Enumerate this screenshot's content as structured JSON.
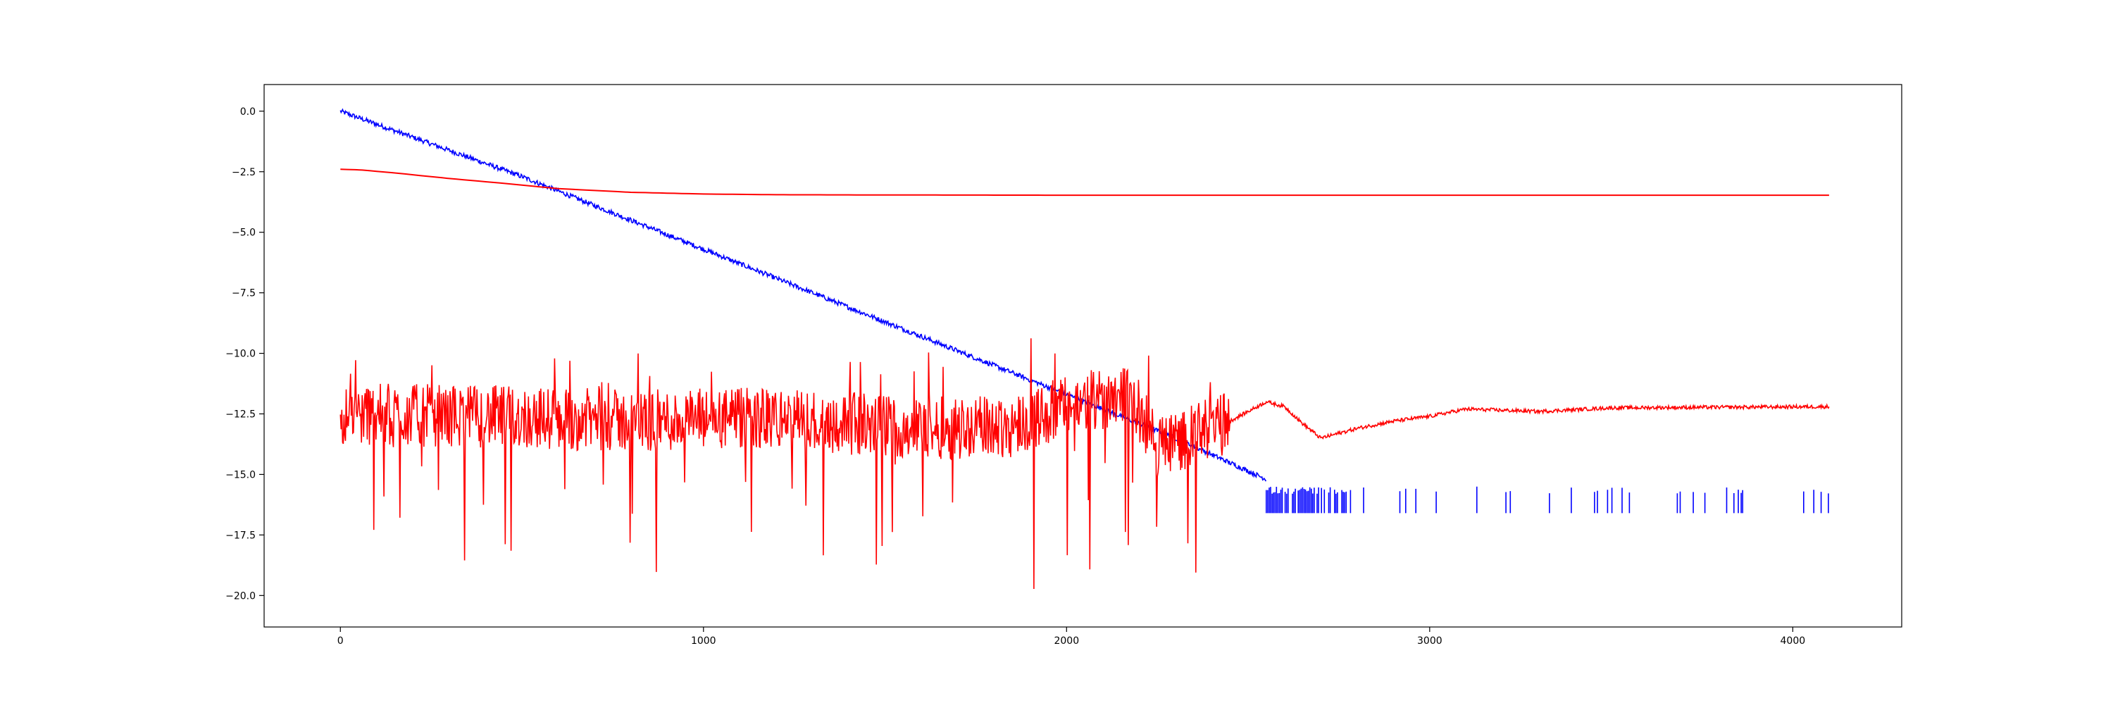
{
  "chart_data": {
    "type": "line",
    "title": "",
    "xlabel": "",
    "ylabel": "",
    "xlim": [
      -210,
      4300
    ],
    "ylim": [
      -21.3,
      1.1
    ],
    "grid": false,
    "x_ticks": [
      0,
      1000,
      2000,
      3000,
      4000
    ],
    "x_tick_labels": [
      "0",
      "1000",
      "2000",
      "3000",
      "4000"
    ],
    "y_ticks": [
      0.0,
      -2.5,
      -5.0,
      -7.5,
      -10.0,
      -12.5,
      -15.0,
      -17.5,
      -20.0
    ],
    "y_tick_labels": [
      "0.0",
      "−2.5",
      "−5.0",
      "−7.5",
      "−10.0",
      "−12.5",
      "−15.0",
      "−17.5",
      "−20.0"
    ],
    "colors": {
      "blue": "#0000ff",
      "red": "#ff0000"
    },
    "series": [
      {
        "color": "#0000ff",
        "style": "noisy decay to floor",
        "x": [
          0,
          500,
          1000,
          1500,
          2000,
          2300,
          2550
        ],
        "values": [
          0.0,
          -2.7,
          -5.7,
          -8.7,
          -11.7,
          -13.5,
          -15.2
        ],
        "noise_amp": 0.1,
        "floor_after_x": 2550,
        "floor_band": [
          -16.6,
          -15.5
        ]
      },
      {
        "color": "#ff0000",
        "style": "smooth",
        "x": [
          0,
          50,
          150,
          300,
          450,
          600,
          800,
          1000,
          1200,
          1500,
          2000,
          3000,
          4100
        ],
        "values": [
          -2.4,
          -2.42,
          -2.55,
          -2.78,
          -2.98,
          -3.2,
          -3.35,
          -3.42,
          -3.45,
          -3.46,
          -3.47,
          -3.47,
          -3.47
        ]
      },
      {
        "color": "#ff0000",
        "style": "noisy",
        "x": [
          0,
          400,
          800,
          1200,
          1600,
          1850,
          2000,
          2100,
          2150,
          2200,
          2250,
          2350,
          2450,
          2500,
          2550,
          2600,
          2650,
          2700,
          2800,
          2900,
          3000,
          3100,
          3300,
          3500,
          4100
        ],
        "values": [
          -12.5,
          -12.6,
          -12.8,
          -12.7,
          -13.1,
          -13.0,
          -12.2,
          -11.9,
          -11.5,
          -12.4,
          -13.8,
          -13.4,
          -12.8,
          -12.4,
          -12.0,
          -12.2,
          -12.9,
          -13.5,
          -13.1,
          -12.8,
          -12.6,
          -12.3,
          -12.4,
          -12.25,
          -12.2
        ],
        "noise_until_x": 2450,
        "noise_amp": 1.3,
        "spike_min": -20.4
      }
    ]
  }
}
